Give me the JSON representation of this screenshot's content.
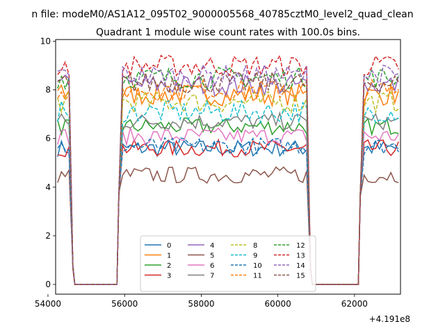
{
  "figure_title": "n file: modeM0/AS1A12_095T02_9000005568_40785cztM0_level2_quad_clean",
  "chart_data": {
    "type": "line",
    "title": "Quadrant 1 module wise count rates with 100.0s bins.",
    "xlabel": "",
    "ylabel": "",
    "offset_text": "+4.191e8",
    "xlim": [
      54200,
      63200
    ],
    "ylim": [
      0,
      10
    ],
    "x_ticks": [
      54000,
      56000,
      58000,
      60000,
      62000
    ],
    "x_tick_labels": [
      "54000",
      "56000",
      "58000",
      "60000",
      "62000"
    ],
    "y_ticks": [
      0,
      2,
      4,
      6,
      8,
      10
    ],
    "y_tick_labels": [
      "0",
      "2",
      "4",
      "6",
      "8",
      "10"
    ],
    "grid": false,
    "legend_position": "bottom-center",
    "legend_columns": 4,
    "segments": [
      {
        "x_start": 54250,
        "x_end": 54650,
        "step": 100
      },
      {
        "x_start": 55850,
        "x_end": 60850,
        "step": 100
      },
      {
        "x_start": 62150,
        "x_end": 63150,
        "step": 100
      }
    ],
    "gap_zero_ranges": [
      [
        54650,
        55850
      ],
      [
        60850,
        62150
      ]
    ],
    "gap_zero_level": 0,
    "series": [
      {
        "name": "0",
        "color": "#1f77b4",
        "dashed": false,
        "level": 5.6
      },
      {
        "name": "1",
        "color": "#ff7f0e",
        "dashed": false,
        "level": 7.8
      },
      {
        "name": "2",
        "color": "#2ca02c",
        "dashed": false,
        "level": 6.5
      },
      {
        "name": "3",
        "color": "#d62728",
        "dashed": false,
        "level": 5.6
      },
      {
        "name": "4",
        "color": "#9467bd",
        "dashed": false,
        "level": 8.2
      },
      {
        "name": "5",
        "color": "#8c564b",
        "dashed": false,
        "level": 4.5
      },
      {
        "name": "6",
        "color": "#e377c2",
        "dashed": false,
        "level": 6.1
      },
      {
        "name": "7",
        "color": "#7f7f7f",
        "dashed": false,
        "level": 6.7
      },
      {
        "name": "8",
        "color": "#bcbd22",
        "dashed": true,
        "level": 7.5
      },
      {
        "name": "9",
        "color": "#17becf",
        "dashed": true,
        "level": 7.1
      },
      {
        "name": "10",
        "color": "#1f77b4",
        "dashed": true,
        "level": 5.7
      },
      {
        "name": "11",
        "color": "#ff7f0e",
        "dashed": true,
        "level": 8.0
      },
      {
        "name": "12",
        "color": "#2ca02c",
        "dashed": true,
        "level": 8.5
      },
      {
        "name": "13",
        "color": "#d62728",
        "dashed": true,
        "level": 9.0
      },
      {
        "name": "14",
        "color": "#9467bd",
        "dashed": true,
        "level": 8.6
      },
      {
        "name": "15",
        "color": "#8c564b",
        "dashed": true,
        "level": 8.3
      }
    ]
  }
}
